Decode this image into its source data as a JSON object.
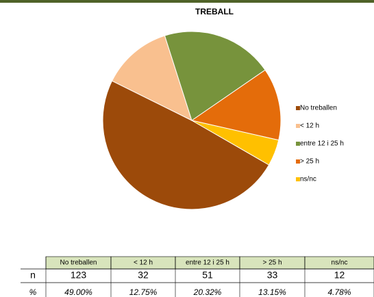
{
  "chart_data": {
    "type": "pie",
    "title": "TREBALL",
    "categories": [
      "No treballen",
      "< 12 h",
      "entre 12 i 25 h",
      "> 25 h",
      "ns/nc"
    ],
    "values": [
      49,
      12.75,
      20.32,
      13.15,
      4.78
    ],
    "value_labels": [
      "49.00%",
      "12.75%",
      "20.32%",
      "13.15%",
      "4.78%"
    ],
    "colors": [
      "#9c4a0a",
      "#f9c08f",
      "#77933c",
      "#e46c0a",
      "#ffc000"
    ],
    "legend": "right"
  },
  "table": {
    "row_labels": [
      "n",
      "%"
    ],
    "n": [
      123,
      32,
      51,
      33,
      12
    ]
  }
}
